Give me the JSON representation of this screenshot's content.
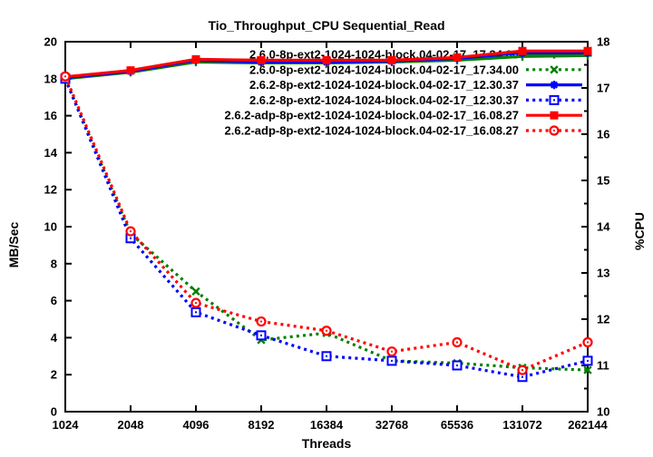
{
  "chart_data": {
    "type": "line",
    "title": "Tio_Throughput_CPU Sequential_Read",
    "xlabel": "Threads",
    "ylabel_left": "MB/Sec",
    "ylabel_right": "%CPU",
    "x_categories": [
      "1024",
      "2048",
      "4096",
      "8192",
      "16384",
      "32768",
      "65536",
      "131072",
      "262144"
    ],
    "ylim_left": [
      0,
      20
    ],
    "ylim_right": [
      10,
      18
    ],
    "yticks_left": [
      0,
      2,
      4,
      6,
      8,
      10,
      12,
      14,
      16,
      18,
      20
    ],
    "yticks_right": [
      10,
      11,
      12,
      13,
      14,
      15,
      16,
      17,
      18
    ],
    "grid": false,
    "legend_position": "top-right",
    "colors": {
      "green": "#008000",
      "blue": "#0000ff",
      "red": "#ff0000",
      "axis": "#000000",
      "background": "#ffffff"
    },
    "series": [
      {
        "name": "2.6.0-8p-ext2-1024-1024-block.04-02-17_17.34.00",
        "axis": "left",
        "style": "solid",
        "marker": "plus",
        "color": "#008000",
        "values": [
          18.0,
          18.35,
          18.9,
          18.85,
          18.85,
          18.9,
          19.0,
          19.2,
          19.25
        ]
      },
      {
        "name": "2.6.0-8p-ext2-1024-1024-block.04-02-17_17.34.00",
        "axis": "right",
        "style": "dotted",
        "marker": "cross",
        "color": "#008000",
        "values": [
          17.2,
          13.85,
          12.6,
          11.55,
          11.7,
          11.1,
          11.05,
          10.95,
          10.9
        ]
      },
      {
        "name": "2.6.2-8p-ext2-1024-1024-block.04-02-17_12.30.37",
        "axis": "left",
        "style": "solid",
        "marker": "star",
        "color": "#0000ff",
        "values": [
          18.05,
          18.4,
          19.0,
          18.9,
          18.9,
          18.95,
          19.1,
          19.4,
          19.4
        ]
      },
      {
        "name": "2.6.2-8p-ext2-1024-1024-block.04-02-17_12.30.37",
        "axis": "right",
        "style": "dotted",
        "marker": "square-open",
        "color": "#0000ff",
        "values": [
          17.2,
          13.75,
          12.15,
          11.65,
          11.2,
          11.1,
          11.0,
          10.75,
          11.1
        ]
      },
      {
        "name": "2.6.2-adp-8p-ext2-1024-1024-block.04-02-17_16.08.27",
        "axis": "left",
        "style": "solid",
        "marker": "square-filled",
        "color": "#ff0000",
        "values": [
          18.1,
          18.45,
          19.05,
          19.0,
          19.0,
          19.0,
          19.15,
          19.5,
          19.5
        ]
      },
      {
        "name": "2.6.2-adp-8p-ext2-1024-1024-block.04-02-17_16.08.27",
        "axis": "right",
        "style": "dotted",
        "marker": "circle-open",
        "color": "#ff0000",
        "values": [
          17.25,
          13.9,
          12.35,
          11.95,
          11.75,
          11.3,
          11.5,
          10.9,
          11.5
        ]
      }
    ]
  }
}
